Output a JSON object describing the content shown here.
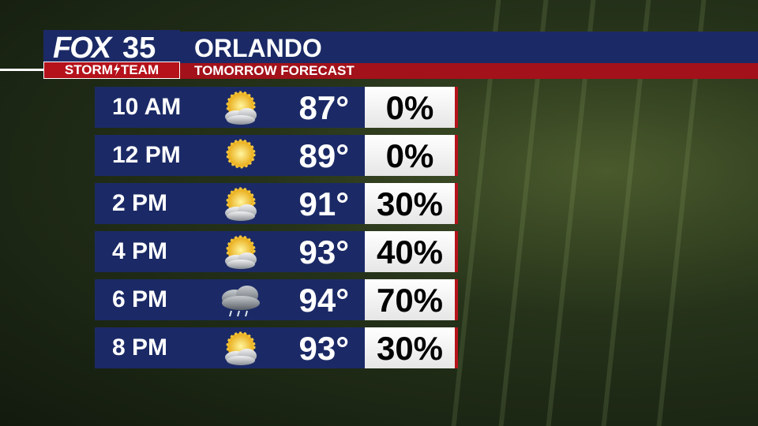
{
  "logo": {
    "station": "FOX",
    "channel": "35",
    "team_left": "STORM",
    "team_right": "TEAM"
  },
  "header": {
    "title": "ORLANDO",
    "subtitle": "TOMORROW FORECAST"
  },
  "table": {
    "rows": [
      [
        "10 AM",
        "87°",
        "0%"
      ],
      [
        "12 PM",
        "89°",
        "0%"
      ],
      [
        "2 PM",
        "91°",
        "30%"
      ],
      [
        "4 PM",
        "93°",
        "40%"
      ],
      [
        "6 PM",
        "94°",
        "70%"
      ],
      [
        "8 PM",
        "93°",
        "30%"
      ]
    ]
  }
}
